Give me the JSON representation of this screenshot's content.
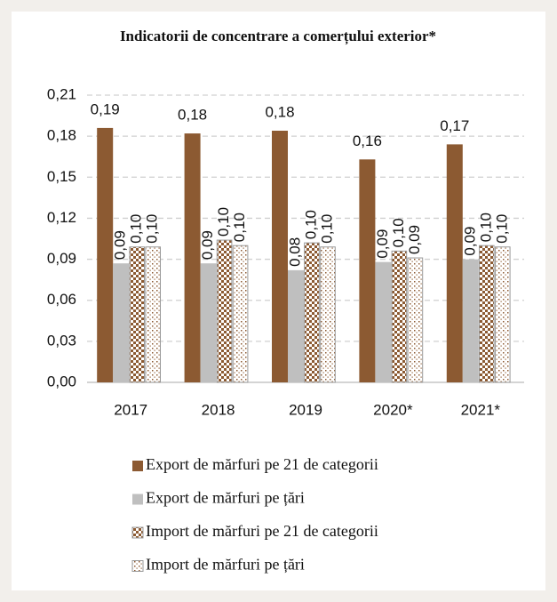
{
  "chart_data": {
    "type": "bar",
    "title": "Indicatorii de concentrare a comerțului exterior*",
    "categories": [
      "2017",
      "2018",
      "2019",
      "2020*",
      "2021*"
    ],
    "series": [
      {
        "name": "Export de mărfuri pe 21 de categorii",
        "color": "#8c5a32",
        "pattern": "solid",
        "values": [
          0.186,
          0.182,
          0.184,
          0.163,
          0.174
        ],
        "value_labels": [
          "0,19",
          "0,18",
          "0,18",
          "0,16",
          "0,17"
        ]
      },
      {
        "name": "Export de mărfuri pe țări",
        "color": "#bfbfbf",
        "pattern": "solid",
        "values": [
          0.087,
          0.087,
          0.082,
          0.088,
          0.09
        ],
        "value_labels": [
          "0,09",
          "0,09",
          "0,08",
          "0,09",
          "0,09"
        ]
      },
      {
        "name": "Import de mărfuri pe 21 de categorii",
        "color": "#8c5a32",
        "pattern": "checker",
        "values": [
          0.099,
          0.104,
          0.102,
          0.096,
          0.1
        ],
        "value_labels": [
          "0,10",
          "0,10",
          "0,10",
          "0,10",
          "0,10"
        ]
      },
      {
        "name": "Import de mărfuri pe țări",
        "color": "#8c5a32",
        "pattern": "dots",
        "values": [
          0.099,
          0.1,
          0.099,
          0.091,
          0.099
        ],
        "value_labels": [
          "0,10",
          "0,10",
          "0,10",
          "0,09",
          "0,10"
        ]
      }
    ],
    "ylim": [
      0,
      0.21
    ],
    "yticks": [
      {
        "value": 0,
        "label": "0,00"
      },
      {
        "value": 0.03,
        "label": "0,03"
      },
      {
        "value": 0.06,
        "label": "0,06"
      },
      {
        "value": 0.09,
        "label": "0,09"
      },
      {
        "value": 0.12,
        "label": "0,12"
      },
      {
        "value": 0.15,
        "label": "0,15"
      },
      {
        "value": 0.18,
        "label": "0,18"
      },
      {
        "value": 0.21,
        "label": "0,21"
      }
    ],
    "grid": true,
    "legend": "bottom"
  }
}
